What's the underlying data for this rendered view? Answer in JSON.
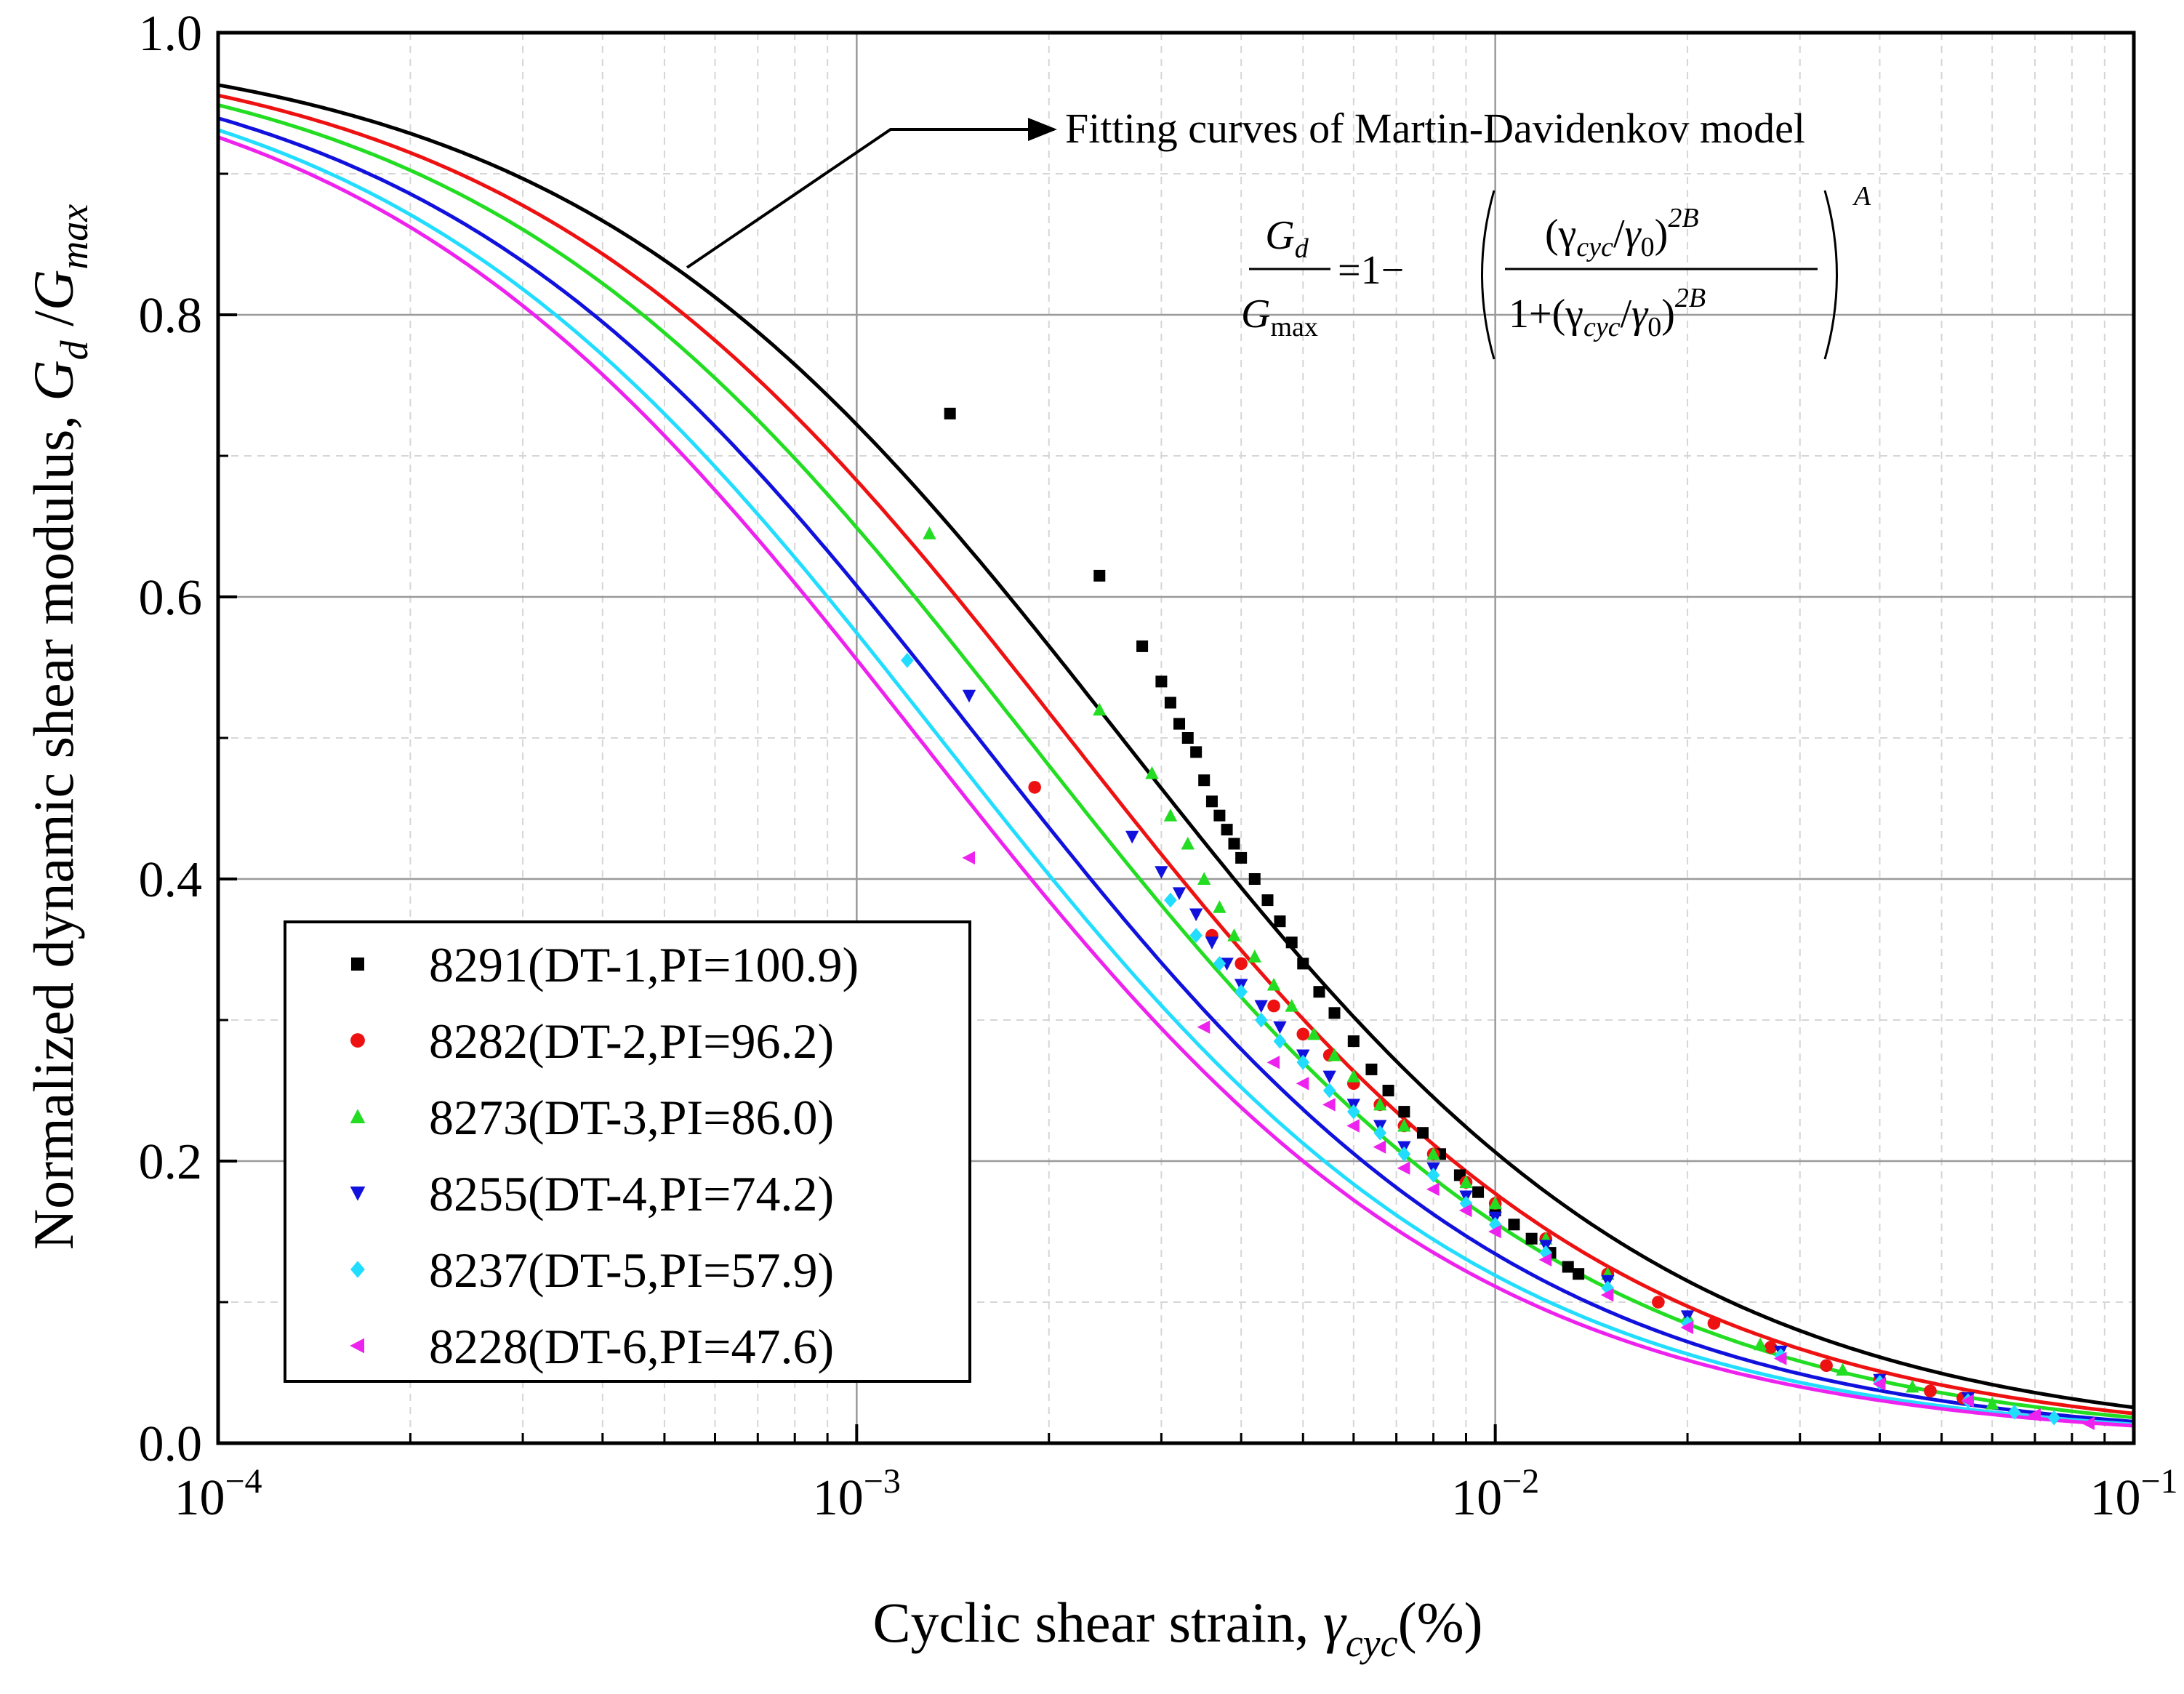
{
  "chart_data": {
    "type": "scatter",
    "title": "",
    "xscale": "log",
    "xlim": [
      0.0001,
      0.1
    ],
    "ylim": [
      0.0,
      1.0
    ],
    "xlabel": "Cyclic shear strain, ",
    "xlabel_symbol": "γ",
    "xlabel_sub": "cyc",
    "xlabel_unit": "(%)",
    "ylabel": "Normalized dynamic shear modulus, ",
    "ylabel_symbol": "G",
    "ylabel_sub1": "d",
    "ylabel_mid": " /",
    "ylabel_sub2": "max",
    "x_ticks": [
      {
        "base": "10",
        "exp": "−4",
        "value": 0.0001
      },
      {
        "base": "10",
        "exp": "−3",
        "value": 0.001
      },
      {
        "base": "10",
        "exp": "−2",
        "value": 0.01
      },
      {
        "base": "10",
        "exp": "−1",
        "value": 0.1
      }
    ],
    "y_ticks": [
      {
        "label": "0.0",
        "value": 0.0
      },
      {
        "label": "0.2",
        "value": 0.2
      },
      {
        "label": "0.4",
        "value": 0.4
      },
      {
        "label": "0.6",
        "value": 0.6
      },
      {
        "label": "0.8",
        "value": 0.8
      },
      {
        "label": "1.0",
        "value": 1.0
      }
    ],
    "grid": true,
    "legend_position": "bottom-left",
    "annotation": {
      "text": "Fitting curves of Martin-Davidenkov model",
      "formula": {
        "lhs_num": "G",
        "lhs_num_sub": "d",
        "lhs_den": "G",
        "lhs_den_sub": "max",
        "equals": "=1−",
        "num": "(γ",
        "num_sub": "cyc",
        "slash": "/",
        "gamma0": "γ",
        "zero": "0",
        "close": ")",
        "exp2B": "2B",
        "den_prefix": "1+(γ",
        "outer_exp": "A"
      }
    },
    "series": [
      {
        "name": "8291(DT-1,PI=100.9)",
        "color": "#000000",
        "marker": "square",
        "gamma0": 0.0026,
        "B": 0.5,
        "A": 1.0,
        "points": [
          [
            0.0014,
            0.73
          ],
          [
            0.0024,
            0.615
          ],
          [
            0.0028,
            0.565
          ],
          [
            0.003,
            0.54
          ],
          [
            0.0031,
            0.525
          ],
          [
            0.0032,
            0.51
          ],
          [
            0.0033,
            0.5
          ],
          [
            0.0034,
            0.49
          ],
          [
            0.0035,
            0.47
          ],
          [
            0.0036,
            0.455
          ],
          [
            0.0037,
            0.445
          ],
          [
            0.0038,
            0.435
          ],
          [
            0.0039,
            0.425
          ],
          [
            0.004,
            0.415
          ],
          [
            0.0042,
            0.4
          ],
          [
            0.0044,
            0.385
          ],
          [
            0.0046,
            0.37
          ],
          [
            0.0048,
            0.355
          ],
          [
            0.005,
            0.34
          ],
          [
            0.0053,
            0.32
          ],
          [
            0.0056,
            0.305
          ],
          [
            0.006,
            0.285
          ],
          [
            0.0064,
            0.265
          ],
          [
            0.0068,
            0.25
          ],
          [
            0.0072,
            0.235
          ],
          [
            0.0077,
            0.22
          ],
          [
            0.0082,
            0.205
          ],
          [
            0.0088,
            0.19
          ],
          [
            0.0094,
            0.178
          ],
          [
            0.01,
            0.165
          ],
          [
            0.0107,
            0.155
          ],
          [
            0.0114,
            0.145
          ],
          [
            0.0122,
            0.135
          ],
          [
            0.013,
            0.125
          ],
          [
            0.0135,
            0.12
          ]
        ]
      },
      {
        "name": "8282(DT-2,PI=96.2)",
        "color": "#ee1111",
        "marker": "circle",
        "gamma0": 0.00215,
        "B": 0.5,
        "A": 1.0,
        "points": [
          [
            0.0019,
            0.465
          ],
          [
            0.0036,
            0.36
          ],
          [
            0.004,
            0.34
          ],
          [
            0.0045,
            0.31
          ],
          [
            0.005,
            0.29
          ],
          [
            0.0055,
            0.275
          ],
          [
            0.006,
            0.255
          ],
          [
            0.0066,
            0.24
          ],
          [
            0.0072,
            0.225
          ],
          [
            0.008,
            0.205
          ],
          [
            0.009,
            0.185
          ],
          [
            0.01,
            0.17
          ],
          [
            0.012,
            0.145
          ],
          [
            0.015,
            0.12
          ],
          [
            0.018,
            0.1
          ],
          [
            0.022,
            0.085
          ],
          [
            0.027,
            0.068
          ],
          [
            0.033,
            0.055
          ],
          [
            0.04,
            0.045
          ],
          [
            0.048,
            0.037
          ],
          [
            0.054,
            0.032
          ]
        ]
      },
      {
        "name": "8273(DT-3,PI=86.0)",
        "color": "#22dd22",
        "marker": "triangle-up",
        "gamma0": 0.00185,
        "B": 0.5,
        "A": 1.0,
        "points": [
          [
            0.0013,
            0.645
          ],
          [
            0.0024,
            0.52
          ],
          [
            0.0029,
            0.475
          ],
          [
            0.0031,
            0.445
          ],
          [
            0.0033,
            0.425
          ],
          [
            0.0035,
            0.4
          ],
          [
            0.0037,
            0.38
          ],
          [
            0.0039,
            0.36
          ],
          [
            0.0042,
            0.345
          ],
          [
            0.0045,
            0.325
          ],
          [
            0.0048,
            0.31
          ],
          [
            0.0052,
            0.29
          ],
          [
            0.0056,
            0.275
          ],
          [
            0.006,
            0.26
          ],
          [
            0.0066,
            0.24
          ],
          [
            0.0072,
            0.225
          ],
          [
            0.008,
            0.205
          ],
          [
            0.009,
            0.185
          ],
          [
            0.01,
            0.17
          ],
          [
            0.012,
            0.145
          ],
          [
            0.015,
            0.12
          ],
          [
            0.02,
            0.09
          ],
          [
            0.026,
            0.07
          ],
          [
            0.035,
            0.052
          ],
          [
            0.045,
            0.04
          ],
          [
            0.06,
            0.028
          ]
        ]
      },
      {
        "name": "8255(DT-4,PI=74.2)",
        "color": "#1111dd",
        "marker": "triangle-down",
        "gamma0": 0.00155,
        "B": 0.5,
        "A": 1.0,
        "points": [
          [
            0.0015,
            0.53
          ],
          [
            0.0027,
            0.43
          ],
          [
            0.003,
            0.405
          ],
          [
            0.0032,
            0.39
          ],
          [
            0.0034,
            0.375
          ],
          [
            0.0036,
            0.355
          ],
          [
            0.0038,
            0.34
          ],
          [
            0.004,
            0.325
          ],
          [
            0.0043,
            0.31
          ],
          [
            0.0046,
            0.295
          ],
          [
            0.005,
            0.275
          ],
          [
            0.0055,
            0.26
          ],
          [
            0.006,
            0.24
          ],
          [
            0.0066,
            0.225
          ],
          [
            0.0072,
            0.21
          ],
          [
            0.008,
            0.195
          ],
          [
            0.009,
            0.175
          ],
          [
            0.01,
            0.16
          ],
          [
            0.012,
            0.14
          ],
          [
            0.015,
            0.115
          ],
          [
            0.02,
            0.09
          ],
          [
            0.028,
            0.065
          ],
          [
            0.04,
            0.045
          ],
          [
            0.055,
            0.032
          ]
        ]
      },
      {
        "name": "8237(DT-5,PI=57.9)",
        "color": "#22ddff",
        "marker": "diamond",
        "gamma0": 0.00135,
        "B": 0.5,
        "A": 1.0,
        "points": [
          [
            0.0012,
            0.555
          ],
          [
            0.0031,
            0.385
          ],
          [
            0.0034,
            0.36
          ],
          [
            0.0037,
            0.34
          ],
          [
            0.004,
            0.32
          ],
          [
            0.0043,
            0.3
          ],
          [
            0.0046,
            0.285
          ],
          [
            0.005,
            0.27
          ],
          [
            0.0055,
            0.25
          ],
          [
            0.006,
            0.235
          ],
          [
            0.0066,
            0.22
          ],
          [
            0.0072,
            0.205
          ],
          [
            0.008,
            0.19
          ],
          [
            0.009,
            0.17
          ],
          [
            0.01,
            0.155
          ],
          [
            0.012,
            0.135
          ],
          [
            0.015,
            0.11
          ],
          [
            0.02,
            0.085
          ],
          [
            0.028,
            0.062
          ],
          [
            0.04,
            0.043
          ],
          [
            0.055,
            0.03
          ],
          [
            0.065,
            0.022
          ],
          [
            0.075,
            0.018
          ]
        ]
      },
      {
        "name": "8228(DT-6,PI=47.6)",
        "color": "#ee22ee",
        "marker": "triangle-left",
        "gamma0": 0.00125,
        "B": 0.5,
        "A": 1.0,
        "points": [
          [
            0.0015,
            0.415
          ],
          [
            0.0035,
            0.295
          ],
          [
            0.0045,
            0.27
          ],
          [
            0.005,
            0.255
          ],
          [
            0.0055,
            0.24
          ],
          [
            0.006,
            0.225
          ],
          [
            0.0066,
            0.21
          ],
          [
            0.0072,
            0.195
          ],
          [
            0.008,
            0.18
          ],
          [
            0.009,
            0.165
          ],
          [
            0.01,
            0.15
          ],
          [
            0.012,
            0.13
          ],
          [
            0.015,
            0.105
          ],
          [
            0.02,
            0.082
          ],
          [
            0.028,
            0.06
          ],
          [
            0.04,
            0.042
          ],
          [
            0.055,
            0.03
          ],
          [
            0.07,
            0.02
          ],
          [
            0.085,
            0.014
          ]
        ]
      }
    ]
  }
}
